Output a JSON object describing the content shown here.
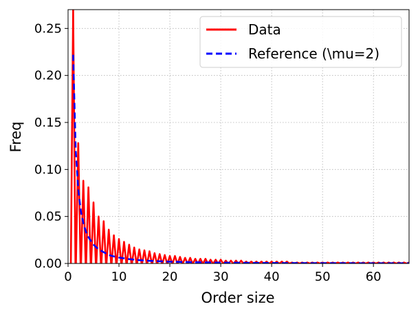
{
  "chart_data": {
    "type": "line",
    "title": "",
    "xlabel": "Order size",
    "ylabel": "Freq",
    "xlim": [
      0,
      67
    ],
    "ylim": [
      0,
      0.27
    ],
    "x_ticks": [
      0,
      10,
      20,
      30,
      40,
      50,
      60
    ],
    "x_tick_labels": [
      "0",
      "10",
      "20",
      "30",
      "40",
      "50",
      "60"
    ],
    "y_ticks": [
      0.0,
      0.05,
      0.1,
      0.15,
      0.2,
      0.25
    ],
    "y_tick_labels": [
      "0.00",
      "0.05",
      "0.10",
      "0.15",
      "0.20",
      "0.25"
    ],
    "grid": true,
    "legend_position": "top-right",
    "series": [
      {
        "name": "Data",
        "color": "#ff0000",
        "style": "solid",
        "x": [
          1,
          2,
          3,
          4,
          5,
          6,
          7,
          8,
          9,
          10,
          11,
          12,
          13,
          14,
          15,
          16,
          17,
          18,
          19,
          20,
          21,
          22,
          23,
          24,
          25,
          26,
          27,
          28,
          29,
          30,
          31,
          32,
          33,
          34,
          35,
          36,
          37,
          38,
          39,
          40,
          41,
          42,
          43,
          44,
          45,
          46,
          47,
          48,
          49,
          50,
          51,
          52,
          53,
          54,
          55,
          56,
          57,
          58,
          59,
          60,
          61,
          62,
          63,
          64,
          65,
          66,
          67
        ],
        "values": [
          0.27,
          0.128,
          0.088,
          0.081,
          0.065,
          0.05,
          0.045,
          0.036,
          0.03,
          0.026,
          0.023,
          0.02,
          0.017,
          0.015,
          0.014,
          0.013,
          0.011,
          0.01,
          0.009,
          0.008,
          0.008,
          0.007,
          0.006,
          0.006,
          0.005,
          0.005,
          0.005,
          0.004,
          0.004,
          0.004,
          0.003,
          0.003,
          0.003,
          0.003,
          0.002,
          0.002,
          0.002,
          0.002,
          0.002,
          0.002,
          0.002,
          0.002,
          0.002,
          0.001,
          0.001,
          0.001,
          0.001,
          0.001,
          0.001,
          0.001,
          0.001,
          0.001,
          0.001,
          0.001,
          0.001,
          0.001,
          0.001,
          0.001,
          0.001,
          0.001,
          0.001,
          0.001,
          0.001,
          0.001,
          0.001,
          0.001,
          0.001
        ]
      },
      {
        "name": "Reference (\\mu=2)",
        "color": "#0000ff",
        "style": "dashed",
        "x": [
          1,
          1.5,
          2,
          2.5,
          3,
          3.5,
          4,
          5,
          6,
          7,
          8,
          9,
          10,
          12,
          14,
          16,
          18,
          20,
          25,
          30,
          35,
          40,
          45,
          50,
          55,
          60,
          65,
          67
        ],
        "values": [
          0.222,
          0.121,
          0.079,
          0.056,
          0.043,
          0.034,
          0.028,
          0.02,
          0.015,
          0.012,
          0.009,
          0.0075,
          0.0063,
          0.0046,
          0.0035,
          0.0028,
          0.0023,
          0.0019,
          0.0013,
          0.0009,
          0.0007,
          0.0005,
          0.0004,
          0.0003,
          0.0003,
          0.0002,
          0.0002,
          0.0002
        ]
      }
    ]
  }
}
